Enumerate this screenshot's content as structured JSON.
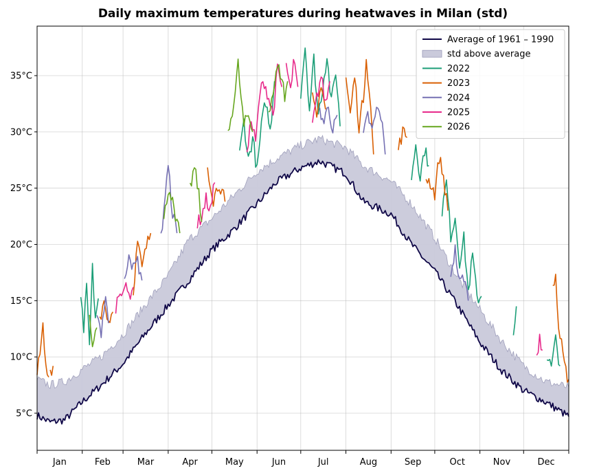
{
  "chart_data": {
    "type": "line",
    "title": "Daily maximum temperatures during heatwaves in Milan (std)",
    "xlabel": "",
    "ylabel": "",
    "x_unit": "day of year",
    "xlim": [
      1,
      366
    ],
    "ylim": [
      1.7,
      39.4
    ],
    "yticks": [
      5,
      10,
      15,
      20,
      25,
      30,
      35
    ],
    "ytick_labels": [
      "5°C",
      "10°C",
      "15°C",
      "20°C",
      "25°C",
      "30°C",
      "35°C"
    ],
    "month_boundaries": [
      1,
      32,
      60,
      91,
      121,
      152,
      182,
      213,
      244,
      274,
      305,
      335,
      366
    ],
    "month_labels": [
      "Jan",
      "Feb",
      "Mar",
      "Apr",
      "May",
      "Jun",
      "Jul",
      "Aug",
      "Sep",
      "Oct",
      "Nov",
      "Dec"
    ],
    "grid": true,
    "legend_position": "top-right",
    "average": {
      "name": "Average of 1961 – 1990",
      "color": "#0f0747",
      "points": [
        [
          1,
          4.8
        ],
        [
          10,
          4.2
        ],
        [
          20,
          4.4
        ],
        [
          32,
          6.0
        ],
        [
          45,
          7.5
        ],
        [
          60,
          9.4
        ],
        [
          75,
          12.0
        ],
        [
          91,
          14.6
        ],
        [
          105,
          16.8
        ],
        [
          121,
          19.5
        ],
        [
          135,
          21.2
        ],
        [
          152,
          23.6
        ],
        [
          165,
          25.5
        ],
        [
          182,
          26.8
        ],
        [
          195,
          27.4
        ],
        [
          213,
          26.3
        ],
        [
          225,
          23.8
        ],
        [
          244,
          22.7
        ],
        [
          258,
          20.0
        ],
        [
          274,
          17.6
        ],
        [
          290,
          14.5
        ],
        [
          305,
          11.3
        ],
        [
          320,
          8.8
        ],
        [
          335,
          7.0
        ],
        [
          350,
          6.0
        ],
        [
          366,
          4.7
        ]
      ]
    },
    "std_band": {
      "name": "std above average",
      "color": "#cacadb",
      "edge_color": "#9a9ab8",
      "upper": [
        [
          1,
          8.0
        ],
        [
          10,
          7.5
        ],
        [
          20,
          7.8
        ],
        [
          32,
          8.9
        ],
        [
          45,
          10.0
        ],
        [
          60,
          12.0
        ],
        [
          75,
          14.6
        ],
        [
          91,
          17.2
        ],
        [
          105,
          20.4
        ],
        [
          121,
          22.3
        ],
        [
          135,
          24.2
        ],
        [
          152,
          26.5
        ],
        [
          165,
          27.6
        ],
        [
          182,
          28.8
        ],
        [
          195,
          29.4
        ],
        [
          213,
          28.6
        ],
        [
          225,
          27.0
        ],
        [
          244,
          25.6
        ],
        [
          258,
          23.6
        ],
        [
          274,
          20.6
        ],
        [
          290,
          17.0
        ],
        [
          305,
          14.2
        ],
        [
          320,
          11.4
        ],
        [
          335,
          9.2
        ],
        [
          350,
          7.8
        ],
        [
          366,
          7.3
        ]
      ]
    },
    "series": [
      {
        "name": "2022",
        "color": "#1b9e77",
        "segments": [
          [
            [
              31,
              15.0
            ],
            [
              33,
              12.5
            ],
            [
              35,
              16.0
            ],
            [
              37,
              11.0
            ],
            [
              39,
              17.8
            ],
            [
              41,
              13.5
            ],
            [
              43,
              15.2
            ]
          ],
          [
            [
              140,
              28.0
            ],
            [
              143,
              31.0
            ],
            [
              146,
              27.5
            ],
            [
              149,
              29.5
            ],
            [
              152,
              26.5
            ],
            [
              155,
              30.5
            ],
            [
              158,
              32.8
            ],
            [
              161,
              30.0
            ],
            [
              164,
              34.5
            ]
          ],
          [
            [
              182,
              33.5
            ],
            [
              185,
              37.7
            ],
            [
              188,
              32.0
            ],
            [
              191,
              36.5
            ],
            [
              194,
              31.5
            ],
            [
              197,
              34.0
            ],
            [
              200,
              36.8
            ],
            [
              203,
              32.5
            ],
            [
              206,
              35.5
            ],
            [
              209,
              30.5
            ]
          ],
          [
            [
              258,
              26.0
            ],
            [
              261,
              29.0
            ],
            [
              264,
              26.0
            ],
            [
              267,
              28.5
            ],
            [
              270,
              27.0
            ]
          ],
          [
            [
              279,
              23.0
            ],
            [
              282,
              25.5
            ],
            [
              285,
              20.8
            ],
            [
              288,
              22.5
            ],
            [
              291,
              18.5
            ],
            [
              294,
              20.5
            ],
            [
              297,
              15.8
            ],
            [
              300,
              19.0
            ],
            [
              303,
              15.2
            ],
            [
              306,
              15.4
            ]
          ],
          [
            [
              328,
              12.0
            ],
            [
              330,
              14.5
            ]
          ],
          [
            [
              351,
              10.2
            ],
            [
              354,
              9.0
            ],
            [
              357,
              11.5
            ],
            [
              360,
              9.2
            ]
          ]
        ]
      },
      {
        "name": "2023",
        "color": "#d95f02",
        "segments": [
          [
            [
              1,
              8.6
            ],
            [
              3,
              10.0
            ],
            [
              5,
              12.6
            ],
            [
              7,
              9.0
            ],
            [
              9,
              8.2
            ]
          ],
          [
            [
              10,
              8.8
            ],
            [
              12,
              9.2
            ]
          ],
          [
            [
              44,
              13.5
            ],
            [
              47,
              15.0
            ],
            [
              50,
              13.2
            ],
            [
              53,
              14.0
            ]
          ],
          [
            [
              67,
              16.0
            ],
            [
              70,
              20.2
            ],
            [
              73,
              17.8
            ],
            [
              76,
              19.8
            ],
            [
              79,
              21.0
            ]
          ],
          [
            [
              118,
              27.0
            ],
            [
              122,
              24.0
            ],
            [
              126,
              25.5
            ],
            [
              130,
              23.8
            ]
          ],
          [
            [
              190,
              33.0
            ],
            [
              193,
              31.0
            ],
            [
              196,
              34.5
            ],
            [
              199,
              32.0
            ]
          ],
          [
            [
              213,
              34.8
            ],
            [
              216,
              31.5
            ],
            [
              219,
              35.0
            ],
            [
              222,
              30.5
            ],
            [
              225,
              33.0
            ],
            [
              227,
              36.8
            ],
            [
              230,
              32.0
            ],
            [
              232,
              28.0
            ]
          ],
          [
            [
              249,
              28.5
            ],
            [
              252,
              30.0
            ],
            [
              255,
              29.5
            ]
          ],
          [
            [
              268,
              26.0
            ],
            [
              271,
              25.5
            ],
            [
              274,
              24.5
            ],
            [
              277,
              27.8
            ],
            [
              280,
              26.0
            ],
            [
              283,
              23.0
            ]
          ],
          [
            [
              355,
              16.2
            ],
            [
              357,
              17.2
            ],
            [
              359,
              12.5
            ],
            [
              361,
              11.0
            ],
            [
              363,
              9.0
            ],
            [
              366,
              8.0
            ]
          ]
        ]
      },
      {
        "name": "2024",
        "color": "#7570b3",
        "segments": [
          [
            [
              42,
              14.0
            ],
            [
              45,
              12.2
            ],
            [
              48,
              15.5
            ],
            [
              50,
              13.0
            ]
          ],
          [
            [
              61,
              16.5
            ],
            [
              64,
              19.5
            ],
            [
              67,
              17.8
            ],
            [
              70,
              18.5
            ],
            [
              73,
              16.8
            ]
          ],
          [
            [
              86,
              20.5
            ],
            [
              89,
              24.5
            ],
            [
              91,
              26.8
            ],
            [
              94,
              22.8
            ],
            [
              97,
              21.0
            ]
          ],
          [
            [
              195,
              32.0
            ],
            [
              198,
              30.8
            ],
            [
              201,
              32.5
            ],
            [
              204,
              30.0
            ],
            [
              207,
              31.5
            ]
          ],
          [
            [
              225,
              29.5
            ],
            [
              228,
              31.5
            ],
            [
              231,
              30.0
            ],
            [
              234,
              32.0
            ],
            [
              237,
              31.5
            ],
            [
              240,
              28.0
            ]
          ],
          [
            [
              285,
              17.5
            ],
            [
              288,
              19.5
            ],
            [
              291,
              16.5
            ],
            [
              294,
              17.2
            ],
            [
              297,
              15.0
            ]
          ]
        ]
      },
      {
        "name": "2025",
        "color": "#e7298a",
        "segments": [
          [
            [
              55,
              14.5
            ],
            [
              58,
              16.0
            ],
            [
              61,
              16.2
            ],
            [
              64,
              15.5
            ],
            [
              67,
              16.2
            ]
          ],
          [
            [
              111,
              21.8
            ],
            [
              114,
              22.5
            ],
            [
              117,
              24.0
            ],
            [
              120,
              23.0
            ],
            [
              123,
              25.5
            ]
          ],
          [
            [
              145,
              28.5
            ],
            [
              148,
              31.0
            ],
            [
              151,
              29.0
            ],
            [
              154,
              33.5
            ],
            [
              157,
              34.5
            ],
            [
              160,
              33.0
            ],
            [
              163,
              31.5
            ],
            [
              166,
              35.5
            ],
            [
              169,
              34.0
            ]
          ],
          [
            [
              172,
              36.0
            ],
            [
              175,
              33.5
            ],
            [
              177,
              36.2
            ],
            [
              180,
              34.0
            ]
          ],
          [
            [
              190,
              30.5
            ],
            [
              193,
              33.0
            ],
            [
              196,
              35.0
            ],
            [
              199,
              32.5
            ],
            [
              202,
              34.5
            ]
          ],
          [
            [
              344,
              10.2
            ],
            [
              346,
              11.8
            ],
            [
              348,
              10.6
            ]
          ]
        ]
      },
      {
        "name": "2026",
        "color": "#66a61e",
        "segments": [
          [
            [
              37,
              13.8
            ],
            [
              39,
              11.5
            ],
            [
              42,
              12.6
            ]
          ],
          [
            [
              88,
              22.0
            ],
            [
              91,
              25.0
            ],
            [
              93,
              24.5
            ],
            [
              96,
              22.0
            ],
            [
              99,
              21.0
            ]
          ],
          [
            [
              106,
              25.0
            ],
            [
              109,
              26.8
            ],
            [
              112,
              24.5
            ],
            [
              114,
              22.0
            ]
          ],
          [
            [
              132,
              29.5
            ],
            [
              135,
              32.0
            ],
            [
              137,
              33.5
            ],
            [
              139,
              36.0
            ],
            [
              141,
              33.0
            ],
            [
              143,
              30.5
            ],
            [
              146,
              31.5
            ],
            [
              149,
              30.0
            ]
          ],
          [
            [
              160,
              32.0
            ],
            [
              163,
              33.5
            ],
            [
              166,
              35.7
            ],
            [
              169,
              35.0
            ],
            [
              171,
              33.0
            ],
            [
              173,
              34.5
            ]
          ]
        ]
      }
    ]
  }
}
